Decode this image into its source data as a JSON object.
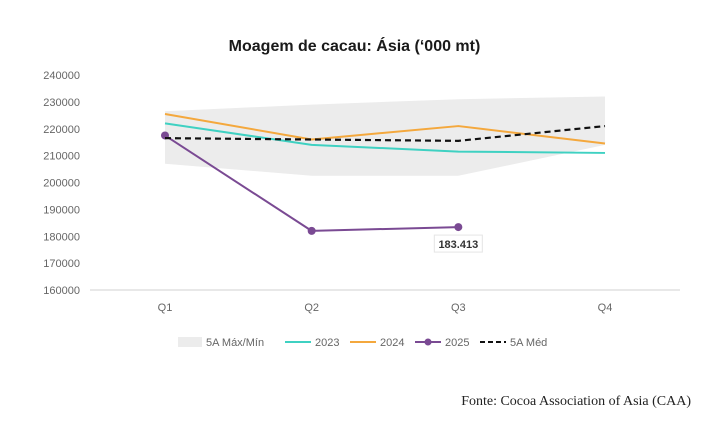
{
  "chart_data": {
    "type": "line",
    "title": "Moagem de cacau: Ásia (‘000 mt)",
    "categories": [
      "Q1",
      "Q2",
      "Q3",
      "Q4"
    ],
    "ylim": [
      160000,
      240000
    ],
    "yticks": [
      160000,
      170000,
      180000,
      190000,
      200000,
      210000,
      220000,
      230000,
      240000
    ],
    "grid": false,
    "legend_position": "bottom",
    "band": {
      "name": "5A Máx/Mín",
      "color": "#ececec",
      "max": [
        226500,
        229000,
        231000,
        232000
      ],
      "min": [
        207000,
        202500,
        202500,
        214000
      ]
    },
    "series": [
      {
        "name": "2023",
        "color": "#3fd1c2",
        "style": "solid",
        "marker": false,
        "values": [
          222000,
          214000,
          211500,
          211000
        ]
      },
      {
        "name": "2024",
        "color": "#f4a83d",
        "style": "solid",
        "marker": false,
        "values": [
          225500,
          216000,
          221000,
          214500
        ]
      },
      {
        "name": "2025",
        "color": "#7a4a93",
        "style": "solid",
        "marker": true,
        "values": [
          217500,
          182000,
          183413,
          null
        ]
      },
      {
        "name": "5A Méd",
        "color": "#111111",
        "style": "dashed",
        "marker": false,
        "values": [
          216500,
          216000,
          215500,
          221000
        ]
      }
    ],
    "annotations": [
      {
        "series": "2025",
        "category": "Q3",
        "text": "183.413"
      }
    ]
  },
  "source_note": "Fonte: Cocoa Association of Asia (CAA)"
}
